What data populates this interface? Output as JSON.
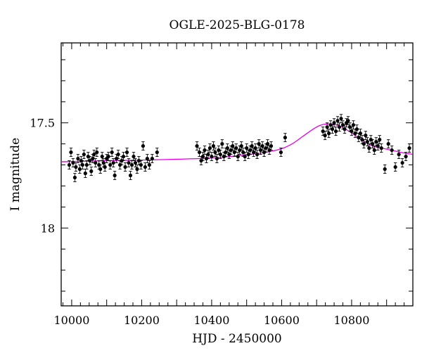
{
  "chart_data": {
    "type": "scatter",
    "title": "OGLE-2025-BLG-0178",
    "xlabel": "HJD - 2450000",
    "ylabel": "I magnitude",
    "xlim": [
      9970,
      10975
    ],
    "ylim": [
      18.37,
      17.12
    ],
    "y_inverted": true,
    "x_ticks": [
      10000,
      10200,
      10400,
      10600,
      10800
    ],
    "x_tick_labels": [
      "10000",
      "10200",
      "10400",
      "10600",
      "10800"
    ],
    "y_ticks": [
      17.5,
      18
    ],
    "y_tick_labels": [
      "17.5",
      "18"
    ],
    "grid": false,
    "model_color": "#e600e6",
    "point_color": "#000000",
    "model": [
      [
        9970,
        17.685
      ],
      [
        10100,
        17.68
      ],
      [
        10200,
        17.677
      ],
      [
        10300,
        17.673
      ],
      [
        10400,
        17.667
      ],
      [
        10500,
        17.652
      ],
      [
        10560,
        17.638
      ],
      [
        10600,
        17.623
      ],
      [
        10630,
        17.6
      ],
      [
        10660,
        17.565
      ],
      [
        10690,
        17.53
      ],
      [
        10710,
        17.512
      ],
      [
        10730,
        17.505
      ],
      [
        10750,
        17.508
      ],
      [
        10770,
        17.518
      ],
      [
        10800,
        17.548
      ],
      [
        10830,
        17.582
      ],
      [
        10860,
        17.61
      ],
      [
        10900,
        17.625
      ],
      [
        10940,
        17.64
      ],
      [
        10975,
        17.65
      ]
    ],
    "points": [
      [
        9993,
        17.7,
        0.02
      ],
      [
        9998,
        17.64,
        0.02
      ],
      [
        10004,
        17.69,
        0.02
      ],
      [
        10009,
        17.76,
        0.02
      ],
      [
        10012,
        17.71,
        0.02
      ],
      [
        10018,
        17.67,
        0.02
      ],
      [
        10023,
        17.72,
        0.02
      ],
      [
        10027,
        17.68,
        0.02
      ],
      [
        10031,
        17.7,
        0.02
      ],
      [
        10035,
        17.65,
        0.02
      ],
      [
        10039,
        17.74,
        0.02
      ],
      [
        10043,
        17.7,
        0.02
      ],
      [
        10047,
        17.66,
        0.02
      ],
      [
        10052,
        17.68,
        0.02
      ],
      [
        10056,
        17.73,
        0.02
      ],
      [
        10060,
        17.67,
        0.02
      ],
      [
        10064,
        17.65,
        0.02
      ],
      [
        10068,
        17.69,
        0.02
      ],
      [
        10072,
        17.64,
        0.02
      ],
      [
        10078,
        17.7,
        0.02
      ],
      [
        10082,
        17.72,
        0.02
      ],
      [
        10087,
        17.66,
        0.02
      ],
      [
        10091,
        17.69,
        0.02
      ],
      [
        10095,
        17.71,
        0.02
      ],
      [
        10100,
        17.67,
        0.02
      ],
      [
        10105,
        17.66,
        0.02
      ],
      [
        10110,
        17.7,
        0.02
      ],
      [
        10115,
        17.64,
        0.02
      ],
      [
        10119,
        17.69,
        0.02
      ],
      [
        10123,
        17.75,
        0.02
      ],
      [
        10128,
        17.67,
        0.02
      ],
      [
        10133,
        17.65,
        0.02
      ],
      [
        10138,
        17.7,
        0.02
      ],
      [
        10143,
        17.68,
        0.02
      ],
      [
        10148,
        17.66,
        0.02
      ],
      [
        10153,
        17.71,
        0.02
      ],
      [
        10158,
        17.64,
        0.02
      ],
      [
        10163,
        17.69,
        0.02
      ],
      [
        10168,
        17.75,
        0.02
      ],
      [
        10172,
        17.7,
        0.02
      ],
      [
        10177,
        17.66,
        0.02
      ],
      [
        10182,
        17.69,
        0.02
      ],
      [
        10187,
        17.72,
        0.02
      ],
      [
        10192,
        17.68,
        0.02
      ],
      [
        10198,
        17.7,
        0.02
      ],
      [
        10204,
        17.61,
        0.02
      ],
      [
        10210,
        17.71,
        0.02
      ],
      [
        10216,
        17.67,
        0.02
      ],
      [
        10222,
        17.7,
        0.02
      ],
      [
        10230,
        17.67,
        0.02
      ],
      [
        10244,
        17.64,
        0.02
      ],
      [
        10358,
        17.61,
        0.02
      ],
      [
        10365,
        17.64,
        0.02
      ],
      [
        10370,
        17.68,
        0.02
      ],
      [
        10375,
        17.66,
        0.02
      ],
      [
        10380,
        17.63,
        0.02
      ],
      [
        10385,
        17.67,
        0.02
      ],
      [
        10390,
        17.65,
        0.02
      ],
      [
        10395,
        17.62,
        0.02
      ],
      [
        10400,
        17.66,
        0.02
      ],
      [
        10405,
        17.61,
        0.02
      ],
      [
        10410,
        17.64,
        0.02
      ],
      [
        10415,
        17.67,
        0.02
      ],
      [
        10420,
        17.63,
        0.02
      ],
      [
        10425,
        17.65,
        0.02
      ],
      [
        10430,
        17.6,
        0.02
      ],
      [
        10435,
        17.66,
        0.02
      ],
      [
        10440,
        17.64,
        0.02
      ],
      [
        10445,
        17.62,
        0.02
      ],
      [
        10450,
        17.65,
        0.02
      ],
      [
        10455,
        17.63,
        0.02
      ],
      [
        10460,
        17.61,
        0.02
      ],
      [
        10465,
        17.64,
        0.02
      ],
      [
        10470,
        17.62,
        0.02
      ],
      [
        10475,
        17.66,
        0.02
      ],
      [
        10480,
        17.63,
        0.02
      ],
      [
        10485,
        17.61,
        0.02
      ],
      [
        10490,
        17.64,
        0.02
      ],
      [
        10495,
        17.66,
        0.02
      ],
      [
        10500,
        17.62,
        0.02
      ],
      [
        10505,
        17.65,
        0.02
      ],
      [
        10510,
        17.63,
        0.02
      ],
      [
        10515,
        17.61,
        0.02
      ],
      [
        10520,
        17.64,
        0.02
      ],
      [
        10525,
        17.62,
        0.02
      ],
      [
        10530,
        17.65,
        0.02
      ],
      [
        10535,
        17.6,
        0.02
      ],
      [
        10540,
        17.63,
        0.02
      ],
      [
        10545,
        17.61,
        0.02
      ],
      [
        10550,
        17.64,
        0.02
      ],
      [
        10555,
        17.62,
        0.02
      ],
      [
        10560,
        17.6,
        0.02
      ],
      [
        10565,
        17.63,
        0.02
      ],
      [
        10570,
        17.61,
        0.02
      ],
      [
        10598,
        17.64,
        0.02
      ],
      [
        10610,
        17.57,
        0.02
      ],
      [
        10718,
        17.54,
        0.02
      ],
      [
        10724,
        17.56,
        0.02
      ],
      [
        10730,
        17.52,
        0.02
      ],
      [
        10735,
        17.55,
        0.02
      ],
      [
        10740,
        17.51,
        0.02
      ],
      [
        10745,
        17.53,
        0.02
      ],
      [
        10750,
        17.5,
        0.02
      ],
      [
        10755,
        17.54,
        0.02
      ],
      [
        10760,
        17.49,
        0.02
      ],
      [
        10765,
        17.52,
        0.02
      ],
      [
        10770,
        17.48,
        0.02
      ],
      [
        10775,
        17.51,
        0.02
      ],
      [
        10780,
        17.53,
        0.02
      ],
      [
        10785,
        17.5,
        0.02
      ],
      [
        10790,
        17.49,
        0.02
      ],
      [
        10795,
        17.52,
        0.02
      ],
      [
        10800,
        17.54,
        0.02
      ],
      [
        10805,
        17.51,
        0.02
      ],
      [
        10810,
        17.55,
        0.02
      ],
      [
        10815,
        17.53,
        0.02
      ],
      [
        10820,
        17.57,
        0.02
      ],
      [
        10825,
        17.55,
        0.02
      ],
      [
        10830,
        17.58,
        0.02
      ],
      [
        10835,
        17.6,
        0.02
      ],
      [
        10840,
        17.56,
        0.02
      ],
      [
        10845,
        17.59,
        0.02
      ],
      [
        10850,
        17.62,
        0.02
      ],
      [
        10855,
        17.58,
        0.02
      ],
      [
        10860,
        17.6,
        0.02
      ],
      [
        10865,
        17.63,
        0.02
      ],
      [
        10870,
        17.59,
        0.02
      ],
      [
        10875,
        17.61,
        0.02
      ],
      [
        10880,
        17.58,
        0.02
      ],
      [
        10885,
        17.62,
        0.02
      ],
      [
        10895,
        17.72,
        0.02
      ],
      [
        10905,
        17.6,
        0.02
      ],
      [
        10915,
        17.63,
        0.02
      ],
      [
        10925,
        17.71,
        0.02
      ],
      [
        10935,
        17.65,
        0.02
      ],
      [
        10945,
        17.69,
        0.02
      ],
      [
        10955,
        17.66,
        0.02
      ],
      [
        10965,
        17.62,
        0.02
      ]
    ]
  }
}
